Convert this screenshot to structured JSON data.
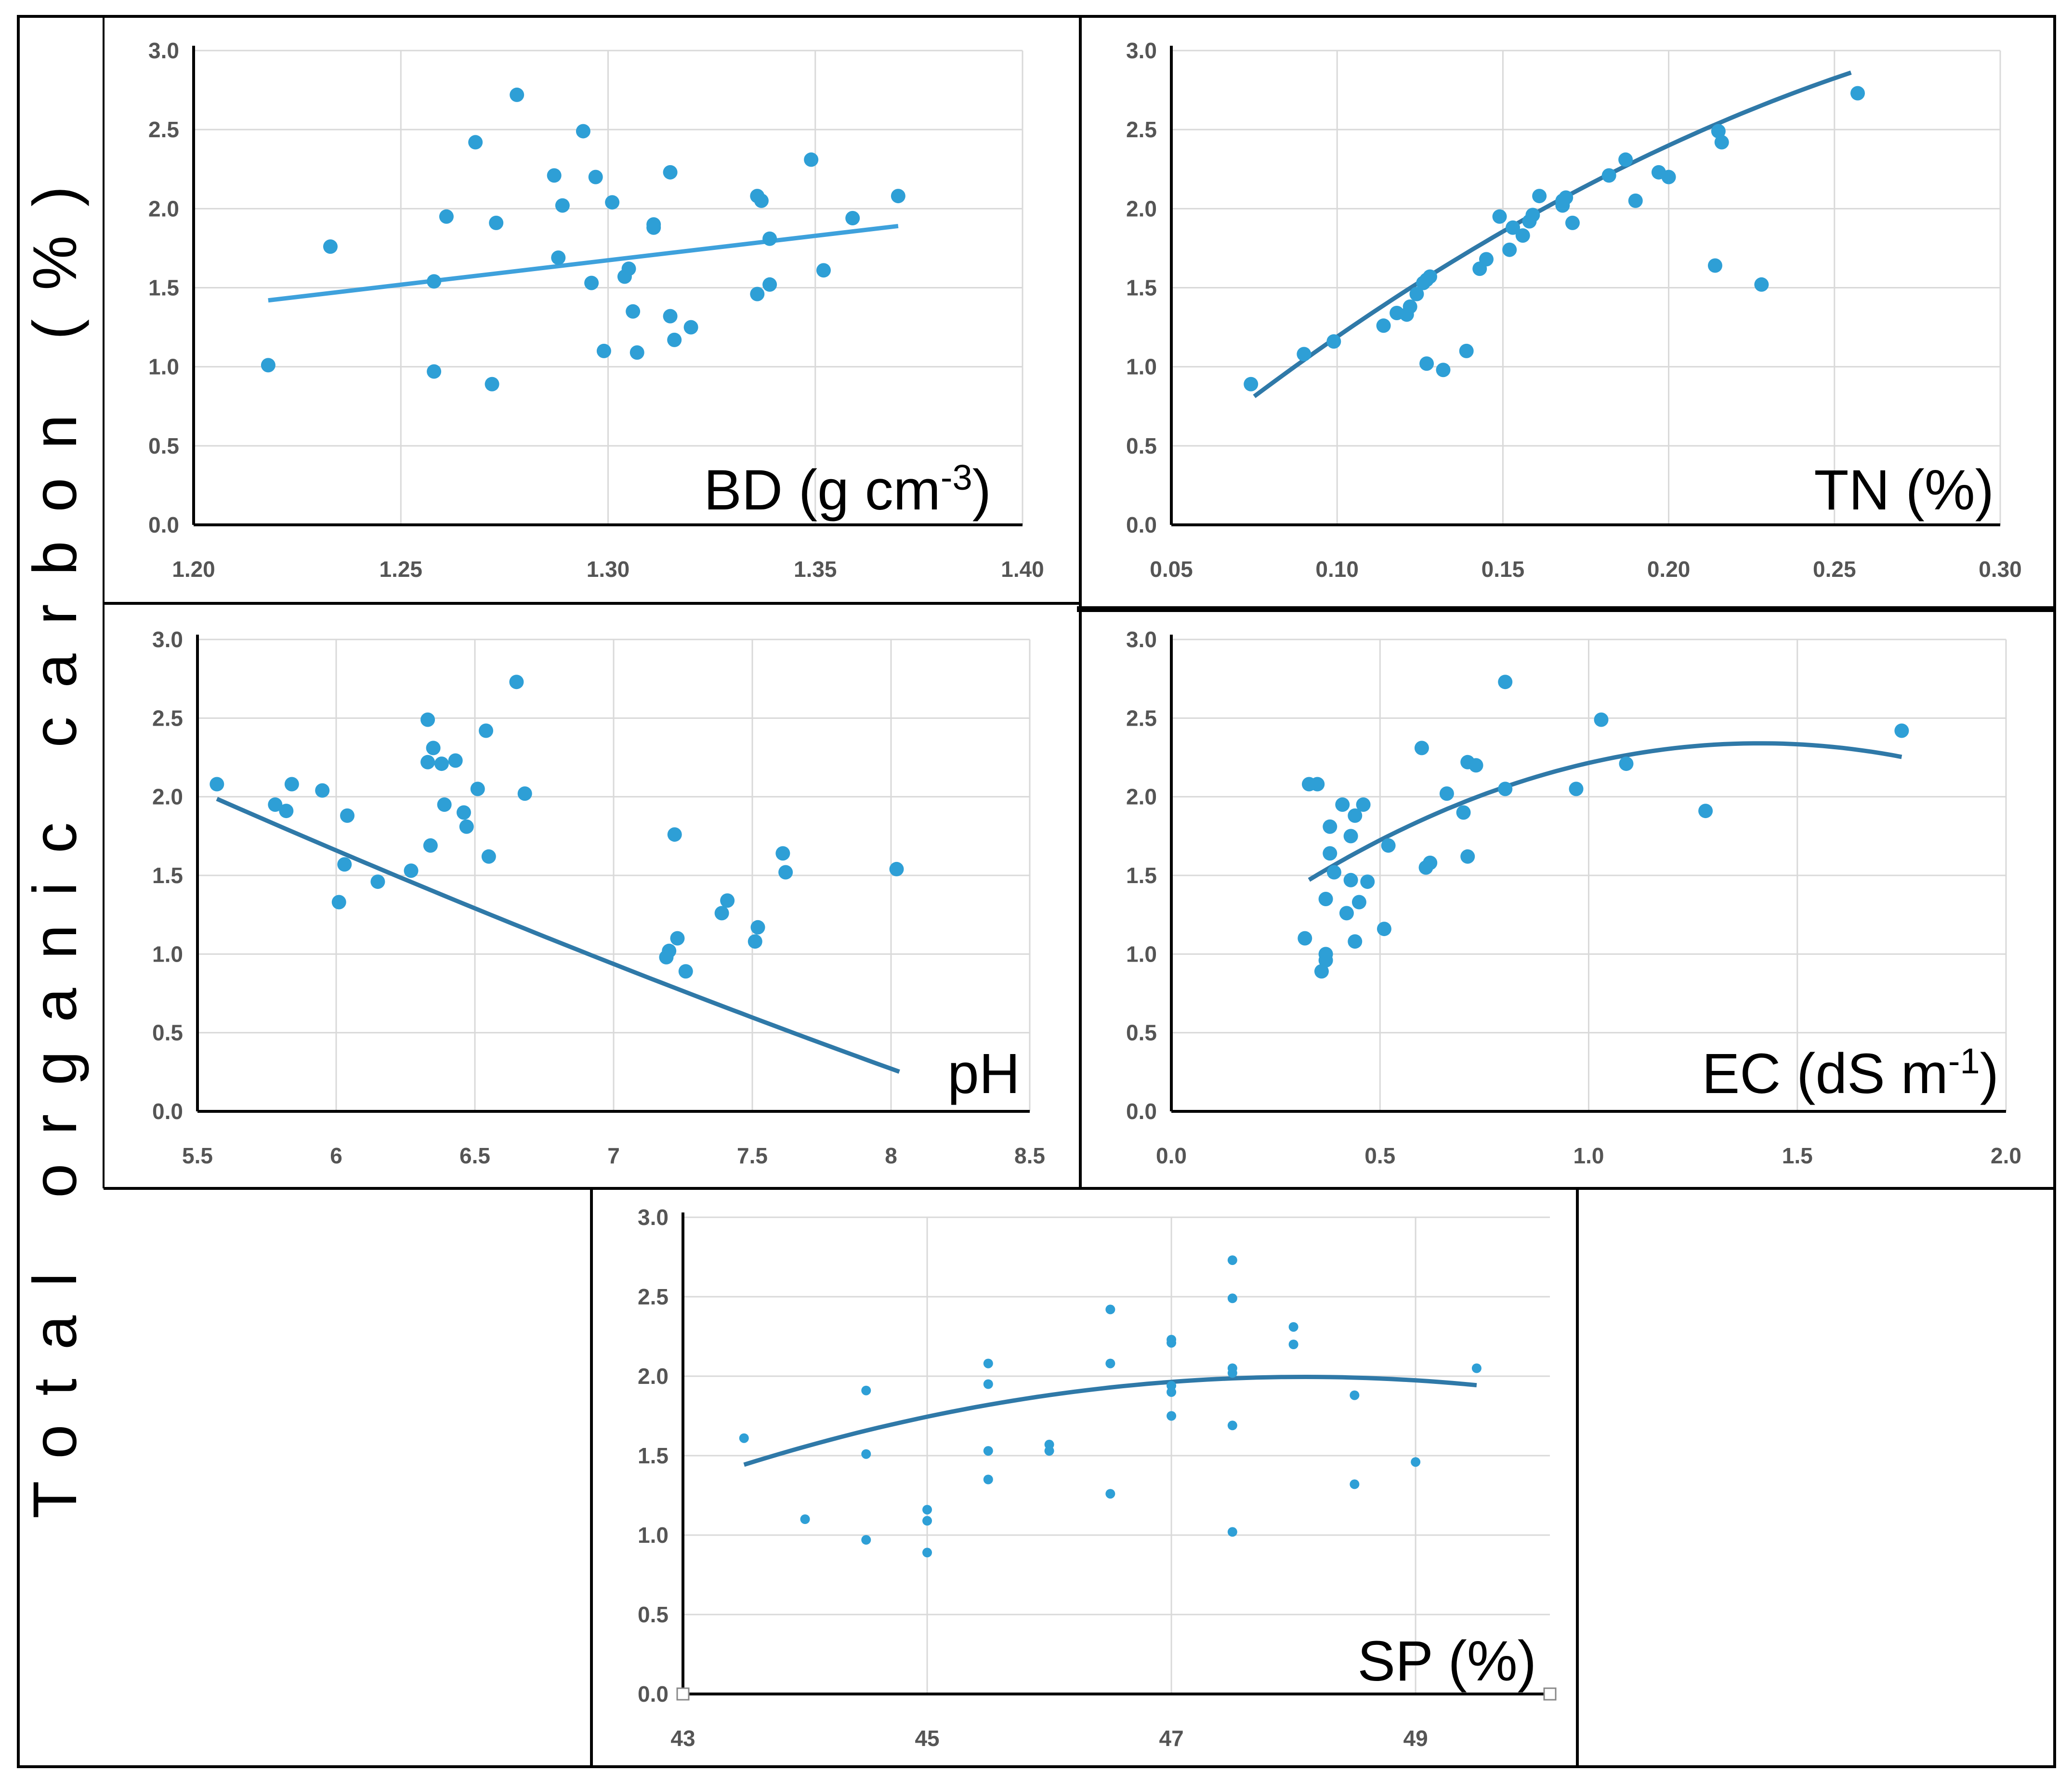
{
  "y_axis_label": "Total organic carbon (%)",
  "colors": {
    "point": "#2e9fd6",
    "trend_dark": "#2f79a8",
    "trend_light": "#3ea1dc",
    "grid": "#d9d9d9",
    "frame": "#000000"
  },
  "chart_data": [
    {
      "id": "bd",
      "type": "scatter",
      "title": "BD (g cm",
      "title_sup": "-3",
      "title_tail": ")",
      "xlim": [
        1.2,
        1.4
      ],
      "xticks": [
        1.2,
        1.25,
        1.3,
        1.35,
        1.4
      ],
      "xtick_labels": [
        "1.20",
        "1.25",
        "1.30",
        "1.35",
        "1.40"
      ],
      "ylim": [
        0,
        3
      ],
      "yticks": [
        0,
        0.5,
        1,
        1.5,
        2,
        2.5,
        3
      ],
      "ytick_labels": [
        "0.0",
        "0.5",
        "1.0",
        "1.5",
        "2.0",
        "2.5",
        "3.0"
      ],
      "trend": {
        "kind": "linear",
        "x_range": [
          1.218,
          1.37
        ],
        "y_start": 1.42,
        "y_end": 1.89,
        "color": "#3ea1dc"
      },
      "points": [
        [
          1.218,
          1.01
        ],
        [
          1.233,
          1.76
        ],
        [
          1.258,
          1.54
        ],
        [
          1.258,
          0.97
        ],
        [
          1.261,
          1.95
        ],
        [
          1.268,
          2.42
        ],
        [
          1.272,
          0.89
        ],
        [
          1.273,
          1.91
        ],
        [
          1.278,
          2.72
        ],
        [
          1.287,
          2.21
        ],
        [
          1.288,
          1.69
        ],
        [
          1.289,
          2.02
        ],
        [
          1.294,
          2.49
        ],
        [
          1.296,
          1.53
        ],
        [
          1.297,
          2.2
        ],
        [
          1.299,
          1.1
        ],
        [
          1.301,
          2.04
        ],
        [
          1.304,
          1.57
        ],
        [
          1.305,
          1.62
        ],
        [
          1.306,
          1.35
        ],
        [
          1.307,
          1.09
        ],
        [
          1.311,
          1.9
        ],
        [
          1.311,
          1.88
        ],
        [
          1.315,
          2.23
        ],
        [
          1.315,
          1.32
        ],
        [
          1.316,
          1.17
        ],
        [
          1.32,
          1.25
        ],
        [
          1.336,
          2.08
        ],
        [
          1.336,
          1.46
        ],
        [
          1.337,
          2.05
        ],
        [
          1.339,
          1.52
        ],
        [
          1.339,
          1.81
        ],
        [
          1.349,
          2.31
        ],
        [
          1.352,
          1.61
        ],
        [
          1.359,
          1.94
        ],
        [
          1.37,
          2.08
        ]
      ]
    },
    {
      "id": "tn",
      "type": "scatter",
      "title": "TN (%)",
      "title_sup": "",
      "title_tail": "",
      "xlim": [
        0.05,
        0.3
      ],
      "xticks": [
        0.05,
        0.1,
        0.15,
        0.2,
        0.25,
        0.3
      ],
      "xtick_labels": [
        "0.05",
        "0.10",
        "0.15",
        "0.20",
        "0.25",
        "0.30"
      ],
      "ylim": [
        0,
        3
      ],
      "yticks": [
        0,
        0.5,
        1,
        1.5,
        2,
        2.5,
        3
      ],
      "ytick_labels": [
        "0.0",
        "0.5",
        "1.0",
        "1.5",
        "2.0",
        "2.5",
        "3.0"
      ],
      "trend": {
        "kind": "poly2",
        "x_range": [
          0.075,
          0.255
        ],
        "coef": [
          -0.5,
          19.3,
          -24.0
        ],
        "color": "#2f79a8"
      },
      "points": [
        [
          0.074,
          0.89
        ],
        [
          0.09,
          1.08
        ],
        [
          0.099,
          1.16
        ],
        [
          0.114,
          1.26
        ],
        [
          0.118,
          1.34
        ],
        [
          0.121,
          1.33
        ],
        [
          0.122,
          1.38
        ],
        [
          0.124,
          1.46
        ],
        [
          0.126,
          1.53
        ],
        [
          0.127,
          1.55
        ],
        [
          0.128,
          1.57
        ],
        [
          0.127,
          1.02
        ],
        [
          0.132,
          0.98
        ],
        [
          0.139,
          1.1
        ],
        [
          0.143,
          1.62
        ],
        [
          0.145,
          1.68
        ],
        [
          0.149,
          1.95
        ],
        [
          0.152,
          1.74
        ],
        [
          0.153,
          1.88
        ],
        [
          0.156,
          1.83
        ],
        [
          0.158,
          1.92
        ],
        [
          0.159,
          1.96
        ],
        [
          0.161,
          2.08
        ],
        [
          0.168,
          2.05
        ],
        [
          0.168,
          2.02
        ],
        [
          0.169,
          2.07
        ],
        [
          0.171,
          1.91
        ],
        [
          0.182,
          2.21
        ],
        [
          0.187,
          2.31
        ],
        [
          0.19,
          2.05
        ],
        [
          0.197,
          2.23
        ],
        [
          0.2,
          2.2
        ],
        [
          0.214,
          1.64
        ],
        [
          0.215,
          2.49
        ],
        [
          0.216,
          2.42
        ],
        [
          0.228,
          1.52
        ],
        [
          0.257,
          2.73
        ]
      ]
    },
    {
      "id": "ph",
      "type": "scatter",
      "title": "pH",
      "title_sup": "",
      "title_tail": "",
      "xlim": [
        5.5,
        8.5
      ],
      "xticks": [
        5.5,
        6,
        6.5,
        7,
        7.5,
        8,
        8.5
      ],
      "xtick_labels": [
        "5.5",
        "6",
        "6.5",
        "7",
        "7.5",
        "8",
        "8.5"
      ],
      "ylim": [
        0,
        3
      ],
      "yticks": [
        0,
        0.5,
        1,
        1.5,
        2,
        2.5,
        3
      ],
      "ytick_labels": [
        "0.0",
        "0.5",
        "1.0",
        "1.5",
        "2.0",
        "2.5",
        "3.0"
      ],
      "trend": {
        "kind": "poly2",
        "x_range": [
          5.57,
          8.03
        ],
        "coef": [
          7.18,
          -1.09,
          0.0283
        ],
        "color": "#2f79a8"
      },
      "points": [
        [
          5.57,
          2.08
        ],
        [
          5.78,
          1.95
        ],
        [
          5.82,
          1.91
        ],
        [
          5.84,
          2.08
        ],
        [
          5.95,
          2.04
        ],
        [
          6.01,
          1.33
        ],
        [
          6.03,
          1.57
        ],
        [
          6.04,
          1.88
        ],
        [
          6.15,
          1.46
        ],
        [
          6.27,
          1.53
        ],
        [
          6.33,
          2.49
        ],
        [
          6.33,
          2.22
        ],
        [
          6.34,
          1.69
        ],
        [
          6.35,
          2.31
        ],
        [
          6.38,
          2.21
        ],
        [
          6.39,
          1.95
        ],
        [
          6.43,
          2.23
        ],
        [
          6.46,
          1.9
        ],
        [
          6.47,
          1.81
        ],
        [
          6.51,
          2.05
        ],
        [
          6.54,
          2.42
        ],
        [
          6.55,
          1.62
        ],
        [
          6.65,
          2.73
        ],
        [
          6.68,
          2.02
        ],
        [
          7.19,
          0.98
        ],
        [
          7.2,
          1.02
        ],
        [
          7.22,
          1.76
        ],
        [
          7.23,
          1.1
        ],
        [
          7.26,
          0.89
        ],
        [
          7.39,
          1.26
        ],
        [
          7.41,
          1.34
        ],
        [
          7.51,
          1.08
        ],
        [
          7.52,
          1.17
        ],
        [
          7.61,
          1.64
        ],
        [
          7.62,
          1.52
        ],
        [
          8.02,
          1.54
        ]
      ]
    },
    {
      "id": "ec",
      "type": "scatter",
      "title": "EC (dS m",
      "title_sup": "-1",
      "title_tail": ")",
      "xlim": [
        0,
        2
      ],
      "xticks": [
        0,
        0.5,
        1,
        1.5,
        2
      ],
      "xtick_labels": [
        "0.0",
        "0.5",
        "1.0",
        "1.5",
        "2.0"
      ],
      "ylim": [
        0,
        3
      ],
      "yticks": [
        0,
        0.5,
        1,
        1.5,
        2,
        2.5,
        3
      ],
      "ytick_labels": [
        "0.0",
        "0.5",
        "1.0",
        "1.5",
        "2.0",
        "2.5",
        "3.0"
      ],
      "trend": {
        "kind": "poly2",
        "x_range": [
          0.33,
          1.75
        ],
        "coef": [
          0.86,
          2.1,
          -0.745
        ],
        "color": "#2f79a8"
      },
      "points": [
        [
          0.32,
          1.1
        ],
        [
          0.33,
          2.08
        ],
        [
          0.35,
          2.08
        ],
        [
          0.36,
          0.89
        ],
        [
          0.37,
          1.0
        ],
        [
          0.37,
          0.96
        ],
        [
          0.37,
          1.35
        ],
        [
          0.38,
          1.64
        ],
        [
          0.38,
          1.81
        ],
        [
          0.39,
          1.52
        ],
        [
          0.41,
          1.95
        ],
        [
          0.42,
          1.26
        ],
        [
          0.43,
          1.47
        ],
        [
          0.43,
          1.75
        ],
        [
          0.44,
          1.88
        ],
        [
          0.44,
          1.08
        ],
        [
          0.45,
          1.33
        ],
        [
          0.46,
          1.95
        ],
        [
          0.47,
          1.46
        ],
        [
          0.51,
          1.16
        ],
        [
          0.52,
          1.69
        ],
        [
          0.6,
          2.31
        ],
        [
          0.61,
          1.55
        ],
        [
          0.62,
          1.58
        ],
        [
          0.66,
          2.02
        ],
        [
          0.7,
          1.9
        ],
        [
          0.71,
          2.22
        ],
        [
          0.71,
          1.62
        ],
        [
          0.73,
          2.2
        ],
        [
          0.8,
          2.73
        ],
        [
          0.8,
          2.05
        ],
        [
          0.97,
          2.05
        ],
        [
          1.03,
          2.49
        ],
        [
          1.09,
          2.21
        ],
        [
          1.28,
          1.91
        ],
        [
          1.75,
          2.42
        ]
      ]
    },
    {
      "id": "sp",
      "type": "scatter",
      "title": "SP (%)",
      "title_sup": "",
      "title_tail": "",
      "xlim": [
        43,
        50.1
      ],
      "xticks": [
        43,
        45,
        47,
        49
      ],
      "xtick_labels": [
        "43",
        "45",
        "47",
        "49"
      ],
      "ylim": [
        0,
        3
      ],
      "yticks": [
        0,
        0.5,
        1,
        1.5,
        2,
        2.5,
        3
      ],
      "ytick_labels": [
        "0.0",
        "0.5",
        "1.0",
        "1.5",
        "2.0",
        "2.5",
        "3.0"
      ],
      "trend": {
        "kind": "poly2",
        "x_range": [
          43.5,
          49.5
        ],
        "coef": [
          -58.6,
          2.52,
          -0.0262
        ],
        "color": "#2f79a8"
      },
      "points": [
        [
          43.5,
          1.61
        ],
        [
          44.0,
          1.1
        ],
        [
          44.5,
          1.91
        ],
        [
          44.5,
          1.51
        ],
        [
          44.5,
          0.97
        ],
        [
          45.0,
          1.16
        ],
        [
          45.0,
          1.09
        ],
        [
          45.0,
          0.89
        ],
        [
          45.5,
          2.08
        ],
        [
          45.5,
          1.95
        ],
        [
          45.5,
          1.53
        ],
        [
          45.5,
          1.35
        ],
        [
          46.0,
          1.57
        ],
        [
          46.0,
          1.53
        ],
        [
          46.5,
          2.42
        ],
        [
          46.5,
          2.08
        ],
        [
          46.5,
          1.26
        ],
        [
          47.0,
          2.23
        ],
        [
          47.0,
          2.21
        ],
        [
          47.0,
          1.94
        ],
        [
          47.0,
          1.9
        ],
        [
          47.0,
          1.75
        ],
        [
          47.5,
          2.73
        ],
        [
          47.5,
          2.49
        ],
        [
          47.5,
          2.05
        ],
        [
          47.5,
          2.02
        ],
        [
          47.5,
          1.69
        ],
        [
          47.5,
          1.02
        ],
        [
          48.0,
          2.31
        ],
        [
          48.0,
          2.2
        ],
        [
          48.5,
          1.88
        ],
        [
          48.5,
          1.32
        ],
        [
          49.0,
          1.46
        ],
        [
          49.5,
          2.05
        ]
      ]
    }
  ]
}
